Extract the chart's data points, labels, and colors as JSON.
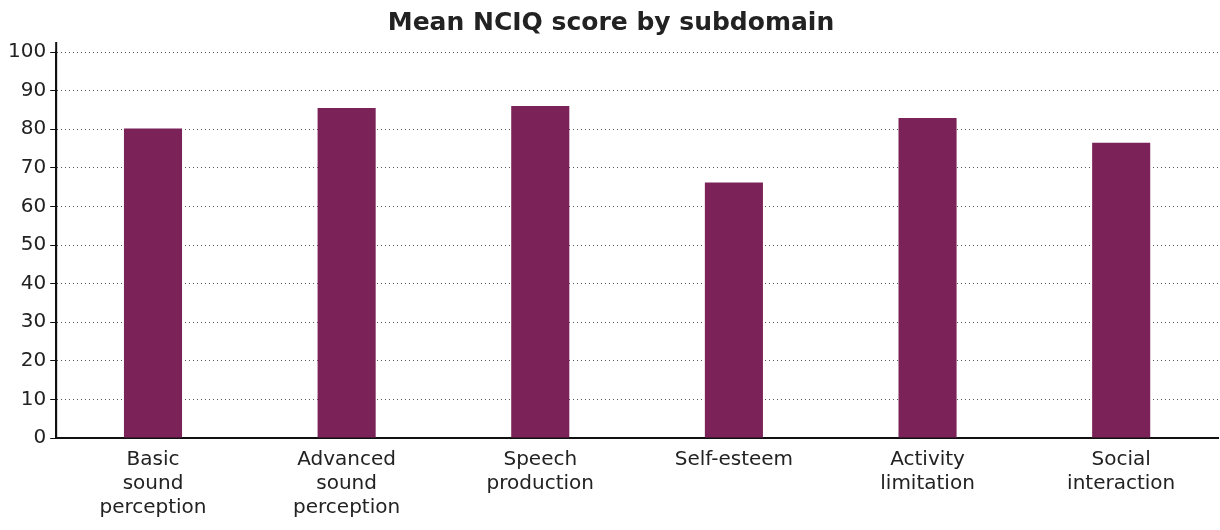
{
  "chart_data": {
    "type": "bar",
    "title": "Mean NCIQ score by subdomain",
    "categories": [
      "Basic sound perception",
      "Advanced sound perception",
      "Speech production",
      "Self-esteem",
      "Activity limitation",
      "Social interaction"
    ],
    "values": [
      80.2,
      85.5,
      86.0,
      66.2,
      82.9,
      76.5
    ],
    "color": "#7b2359",
    "ylim": [
      0,
      100
    ],
    "yticks": [
      0,
      10,
      20,
      30,
      40,
      50,
      60,
      70,
      80,
      90,
      100
    ],
    "grid": "y",
    "legend": false
  }
}
